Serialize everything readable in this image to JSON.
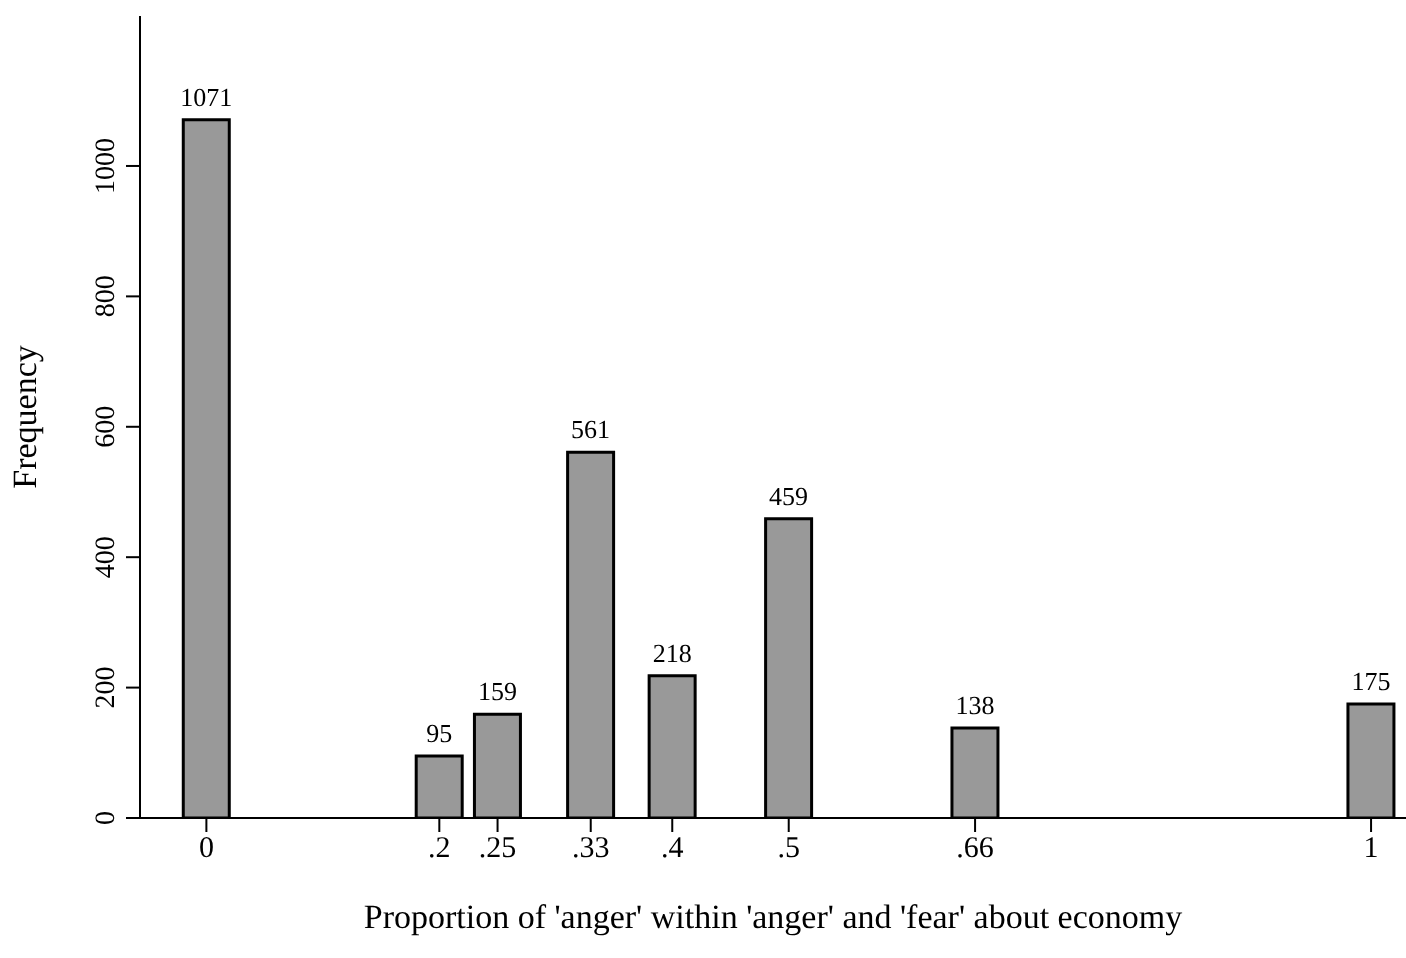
{
  "chart_data": {
    "type": "bar",
    "xlabel": "Proportion of 'anger' within 'anger' and 'fear' about economy",
    "ylabel": "Frequency",
    "x": [
      0,
      0.2,
      0.25,
      0.33,
      0.4,
      0.5,
      0.66,
      1
    ],
    "values": [
      1071,
      95,
      159,
      561,
      218,
      459,
      138,
      175
    ],
    "color": "#999999",
    "data_labels": true,
    "xlim": [
      -0.057,
      1.03
    ],
    "xticks": [
      0,
      {
        "value": 0.2,
        "label": ".2"
      },
      {
        "value": 0.25,
        "label": ".25"
      },
      {
        "value": 0.33,
        "label": ".33"
      },
      {
        "value": 0.4,
        "label": ".4"
      },
      {
        "value": 0.5,
        "label": ".5"
      },
      {
        "value": 0.66,
        "label": ".66"
      },
      1
    ],
    "ylim": [
      0,
      1230
    ],
    "yticks": [
      0,
      200,
      400,
      600,
      800,
      1000
    ],
    "grid": false,
    "legend": false
  }
}
